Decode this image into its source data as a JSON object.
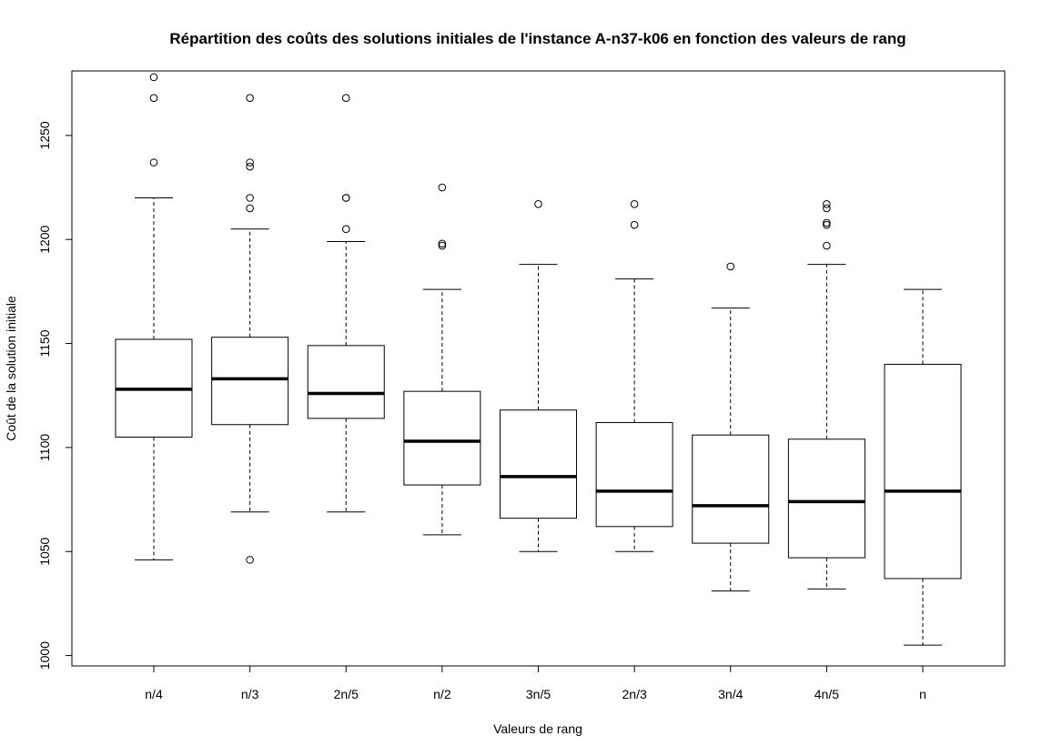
{
  "chart_data": {
    "type": "box",
    "title": "Répartition des coûts des solutions initiales de l'instance A-n37-k06 en fonction des valeurs de rang",
    "xlabel": "Valeurs de rang",
    "ylabel": "Coût de la solution initiale",
    "ylim": [
      995,
      1281
    ],
    "yticks": [
      1000,
      1050,
      1100,
      1150,
      1200,
      1250
    ],
    "categories": [
      "n/4",
      "n/3",
      "2n/5",
      "n/2",
      "3n/5",
      "2n/3",
      "3n/4",
      "4n/5",
      "n"
    ],
    "boxes": [
      {
        "whisker_low": 1046,
        "q1": 1105,
        "median": 1128,
        "q3": 1152,
        "whisker_high": 1220,
        "outliers": [
          1237,
          1268,
          1278
        ]
      },
      {
        "whisker_low": 1069,
        "q1": 1111,
        "median": 1133,
        "q3": 1153,
        "whisker_high": 1205,
        "outliers": [
          1046,
          1215,
          1220,
          1235,
          1237,
          1268
        ]
      },
      {
        "whisker_low": 1069,
        "q1": 1114,
        "median": 1126,
        "q3": 1149,
        "whisker_high": 1199,
        "outliers": [
          1205,
          1220,
          1220,
          1268
        ]
      },
      {
        "whisker_low": 1058,
        "q1": 1082,
        "median": 1103,
        "q3": 1127,
        "whisker_high": 1176,
        "outliers": [
          1197,
          1198,
          1225
        ]
      },
      {
        "whisker_low": 1050,
        "q1": 1066,
        "median": 1086,
        "q3": 1118,
        "whisker_high": 1188,
        "outliers": [
          1217
        ]
      },
      {
        "whisker_low": 1050,
        "q1": 1062,
        "median": 1079,
        "q3": 1112,
        "whisker_high": 1181,
        "outliers": [
          1207,
          1217
        ]
      },
      {
        "whisker_low": 1031,
        "q1": 1054,
        "median": 1072,
        "q3": 1106,
        "whisker_high": 1167,
        "outliers": [
          1187
        ]
      },
      {
        "whisker_low": 1032,
        "q1": 1047,
        "median": 1074,
        "q3": 1104,
        "whisker_high": 1188,
        "outliers": [
          1197,
          1207,
          1208,
          1215,
          1217
        ]
      },
      {
        "whisker_low": 1005,
        "q1": 1037,
        "median": 1079,
        "q3": 1140,
        "whisker_high": 1176,
        "outliers": []
      }
    ],
    "grid": false,
    "legend": "none",
    "colors": {
      "box_fill": "#ffffff",
      "stroke": "#000000"
    }
  }
}
